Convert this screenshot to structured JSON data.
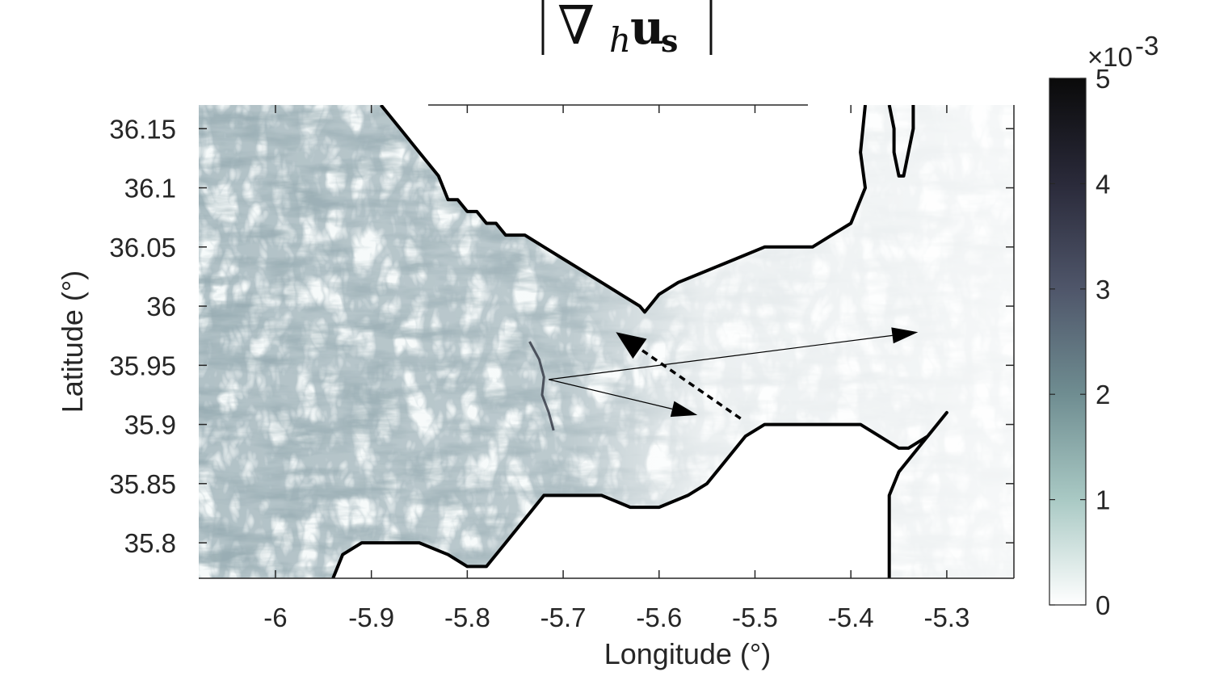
{
  "chart_data": {
    "type": "heatmap",
    "title": {
      "nabla": "∇",
      "sub": "h",
      "vec": "u",
      "vec_sub": "s"
    },
    "xlabel": "Longitude (°)",
    "ylabel": "Latitude (°)",
    "xlim": [
      -6.08,
      -5.23
    ],
    "ylim": [
      35.77,
      36.17
    ],
    "xticks": [
      -6,
      -5.9,
      -5.8,
      -5.7,
      -5.6,
      -5.5,
      -5.4,
      -5.3
    ],
    "xtick_labels": [
      "-6",
      "-5.9",
      "-5.8",
      "-5.7",
      "-5.6",
      "-5.5",
      "-5.4",
      "-5.3"
    ],
    "yticks": [
      36.15,
      36.1,
      36.05,
      36.0,
      35.95,
      35.9,
      35.85,
      35.8
    ],
    "ytick_labels": [
      "36.15",
      "36.1",
      "36.05",
      "36",
      "35.95",
      "35.9",
      "35.85",
      "35.8"
    ],
    "colorbar": {
      "min": 0,
      "max": 5,
      "ticks": [
        0,
        1,
        2,
        3,
        4,
        5
      ],
      "tick_labels": [
        "0",
        "1",
        "2",
        "3",
        "4",
        "5"
      ],
      "multiplier": "×10",
      "exponent": "-3",
      "colors": [
        "#ffffff",
        "#a9c9c4",
        "#6f8d91",
        "#4f566a",
        "#2a2a3a",
        "#0a0a0a"
      ]
    },
    "coastlines": {
      "north_coast": [
        [
          -5.89,
          36.17
        ],
        [
          -5.87,
          36.15
        ],
        [
          -5.85,
          36.13
        ],
        [
          -5.83,
          36.11
        ],
        [
          -5.82,
          36.09
        ],
        [
          -5.81,
          36.09
        ],
        [
          -5.8,
          36.08
        ],
        [
          -5.79,
          36.08
        ],
        [
          -5.78,
          36.07
        ],
        [
          -5.77,
          36.07
        ],
        [
          -5.76,
          36.06
        ],
        [
          -5.74,
          36.06
        ],
        [
          -5.72,
          36.05
        ],
        [
          -5.7,
          36.04
        ],
        [
          -5.68,
          36.03
        ],
        [
          -5.66,
          36.02
        ],
        [
          -5.64,
          36.01
        ],
        [
          -5.62,
          36.0
        ],
        [
          -5.615,
          35.995
        ],
        [
          -5.61,
          36.0
        ],
        [
          -5.6,
          36.01
        ],
        [
          -5.58,
          36.02
        ],
        [
          -5.55,
          36.03
        ],
        [
          -5.52,
          36.04
        ],
        [
          -5.49,
          36.05
        ],
        [
          -5.46,
          36.05
        ],
        [
          -5.44,
          36.05
        ],
        [
          -5.42,
          36.06
        ],
        [
          -5.4,
          36.07
        ],
        [
          -5.385,
          36.1
        ],
        [
          -5.39,
          36.13
        ],
        [
          -5.385,
          36.17
        ]
      ],
      "gibraltar": [
        [
          -5.36,
          36.17
        ],
        [
          -5.355,
          36.15
        ],
        [
          -5.355,
          36.13
        ],
        [
          -5.35,
          36.11
        ],
        [
          -5.345,
          36.11
        ],
        [
          -5.34,
          36.13
        ],
        [
          -5.335,
          36.15
        ],
        [
          -5.335,
          36.17
        ]
      ],
      "south_coast": [
        [
          -5.94,
          35.77
        ],
        [
          -5.93,
          35.79
        ],
        [
          -5.91,
          35.8
        ],
        [
          -5.88,
          35.8
        ],
        [
          -5.85,
          35.8
        ],
        [
          -5.82,
          35.79
        ],
        [
          -5.8,
          35.78
        ],
        [
          -5.78,
          35.78
        ],
        [
          -5.76,
          35.8
        ],
        [
          -5.74,
          35.82
        ],
        [
          -5.72,
          35.84
        ],
        [
          -5.7,
          35.84
        ],
        [
          -5.66,
          35.84
        ],
        [
          -5.63,
          35.83
        ],
        [
          -5.6,
          35.83
        ],
        [
          -5.57,
          35.84
        ],
        [
          -5.55,
          35.85
        ],
        [
          -5.53,
          35.87
        ],
        [
          -5.51,
          35.89
        ],
        [
          -5.49,
          35.9
        ],
        [
          -5.46,
          35.9
        ],
        [
          -5.43,
          35.9
        ],
        [
          -5.41,
          35.9
        ],
        [
          -5.39,
          35.9
        ],
        [
          -5.37,
          35.89
        ],
        [
          -5.35,
          35.88
        ],
        [
          -5.34,
          35.88
        ],
        [
          -5.32,
          35.89
        ],
        [
          -5.3,
          35.91
        ],
        [
          -5.31,
          35.9
        ],
        [
          -5.33,
          35.88
        ],
        [
          -5.35,
          35.86
        ],
        [
          -5.36,
          35.84
        ],
        [
          -5.36,
          35.8
        ],
        [
          -5.36,
          35.77
        ]
      ]
    },
    "arrows": [
      {
        "from": [
          -5.715,
          35.938
        ],
        "to": [
          -5.56,
          35.908
        ],
        "style": "solid"
      },
      {
        "from": [
          -5.715,
          35.938
        ],
        "to": [
          -5.33,
          35.978
        ],
        "style": "solid"
      },
      {
        "from": [
          -5.515,
          35.905
        ],
        "to": [
          -5.645,
          35.978
        ],
        "style": "dashed"
      }
    ]
  }
}
